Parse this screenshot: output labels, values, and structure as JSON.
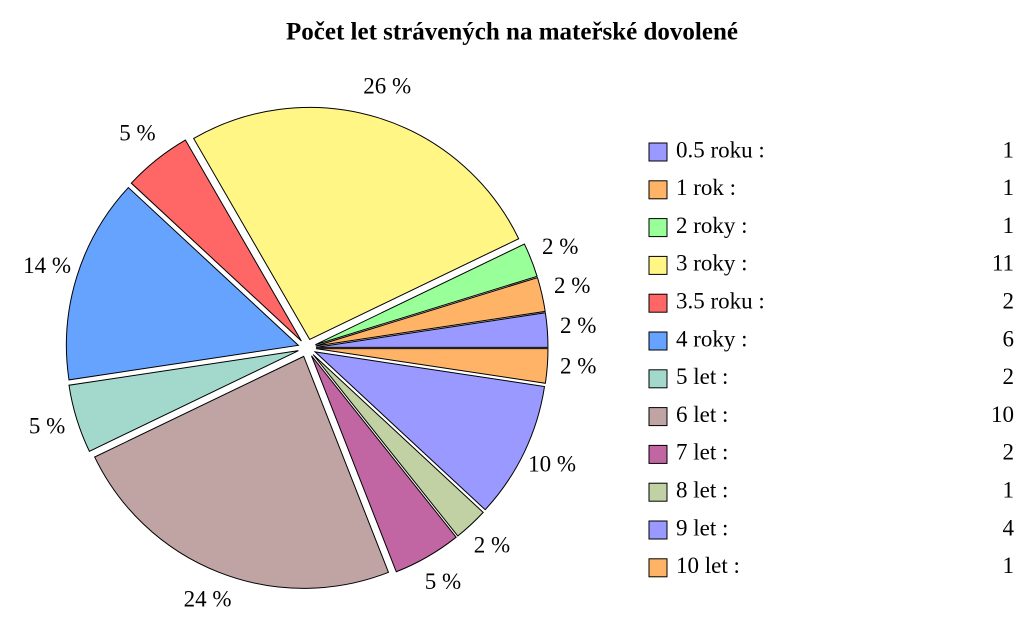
{
  "chart_data": {
    "type": "pie",
    "title": "Počet let strávených na mateřské dovolené",
    "categories": [
      "0.5 roku :",
      "1 rok :",
      "2 roky :",
      "3 roky :",
      "3.5 roku :",
      "4 roky :",
      "5 let :",
      "6 let :",
      "7 let :",
      "8 let :",
      "9 let :",
      "10 let :"
    ],
    "values": [
      1,
      1,
      1,
      11,
      2,
      6,
      2,
      10,
      2,
      1,
      4,
      1
    ],
    "value_labels": [
      "2 %",
      "2 %",
      "2 %",
      "26 %",
      "5 %",
      "14 %",
      "5 %",
      "24 %",
      "5 %",
      "2 %",
      "10 %",
      "2 %"
    ],
    "colors": [
      "#9999ff",
      "#ffb366",
      "#99ff99",
      "#fff685",
      "#ff6666",
      "#66a3ff",
      "#a3d9cc",
      "#c0a3a3",
      "#c266a3",
      "#c2d1a3",
      "#9999ff",
      "#ffb366"
    ],
    "legend": "right"
  }
}
